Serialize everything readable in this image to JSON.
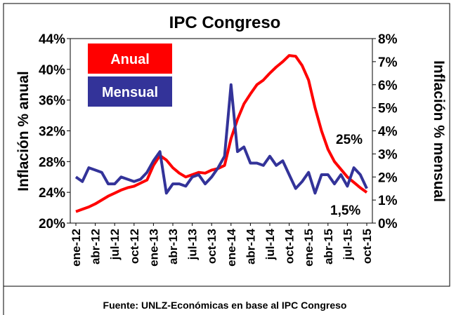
{
  "chart_data": {
    "type": "line",
    "title": "IPC Congreso",
    "y_label": "Inflación % anual",
    "y2_label": "Inflación % mensual",
    "source": "Fuente: UNLZ-Económicas  en base al IPC Congreso",
    "annotations": [
      "25%",
      "1,5%"
    ],
    "categories": [
      "ene-12",
      null,
      null,
      "abr-12",
      null,
      null,
      "jul-12",
      null,
      null,
      "oct-12",
      null,
      null,
      "ene-13",
      null,
      null,
      "abr-13",
      null,
      null,
      "jul-13",
      null,
      null,
      "oct-13",
      null,
      null,
      "ene-14",
      null,
      null,
      "abr-14",
      null,
      null,
      "jul-14",
      null,
      null,
      "oct-14",
      null,
      null,
      "ene-15",
      null,
      null,
      "abr-15",
      null,
      null,
      "jul-15",
      null,
      null,
      "oct-15"
    ],
    "series": [
      {
        "name": "Anual",
        "color": "#ff0000",
        "axis": "y",
        "values": [
          21.5,
          21.8,
          22.1,
          22.5,
          23.0,
          23.5,
          23.9,
          24.3,
          24.6,
          24.8,
          25.2,
          25.6,
          27.5,
          28.8,
          28.2,
          27.2,
          26.5,
          26.0,
          26.3,
          26.6,
          26.5,
          26.9,
          27.1,
          27.5,
          31.0,
          33.5,
          35.5,
          36.8,
          38.0,
          38.6,
          39.5,
          40.3,
          41.0,
          41.8,
          41.7,
          40.5,
          38.6,
          35.0,
          32.0,
          29.6,
          28.0,
          27.0,
          26.0,
          25.3,
          24.6,
          24.0
        ]
      },
      {
        "name": "Mensual",
        "color": "#333399",
        "axis": "y2",
        "values": [
          2.0,
          1.8,
          2.4,
          2.3,
          2.2,
          1.7,
          1.7,
          2.0,
          1.9,
          1.8,
          1.9,
          2.2,
          2.7,
          3.1,
          1.3,
          1.7,
          1.7,
          1.6,
          2.0,
          2.1,
          1.7,
          2.0,
          2.4,
          2.9,
          6.0,
          3.1,
          3.3,
          2.6,
          2.6,
          2.5,
          2.9,
          2.5,
          2.7,
          2.1,
          1.5,
          1.8,
          2.2,
          1.3,
          2.1,
          2.1,
          1.7,
          2.1,
          1.6,
          2.4,
          2.1,
          1.5
        ]
      }
    ],
    "ylim": [
      20,
      44
    ],
    "yticks": [
      {
        "value": 20,
        "label": "20%"
      },
      {
        "value": 24,
        "label": "24%"
      },
      {
        "value": 28,
        "label": "28%"
      },
      {
        "value": 32,
        "label": "32%"
      },
      {
        "value": 36,
        "label": "36%"
      },
      {
        "value": 40,
        "label": "40%"
      },
      {
        "value": 44,
        "label": "44%"
      }
    ],
    "y2lim": [
      0,
      8
    ],
    "y2ticks": [
      {
        "value": 0,
        "label": "0%"
      },
      {
        "value": 1,
        "label": "1%"
      },
      {
        "value": 2,
        "label": "2%"
      },
      {
        "value": 3,
        "label": "3%"
      },
      {
        "value": 4,
        "label": "4%"
      },
      {
        "value": 5,
        "label": "5%"
      },
      {
        "value": 6,
        "label": "6%"
      },
      {
        "value": 7,
        "label": "7%"
      },
      {
        "value": 8,
        "label": "8%"
      }
    ]
  }
}
